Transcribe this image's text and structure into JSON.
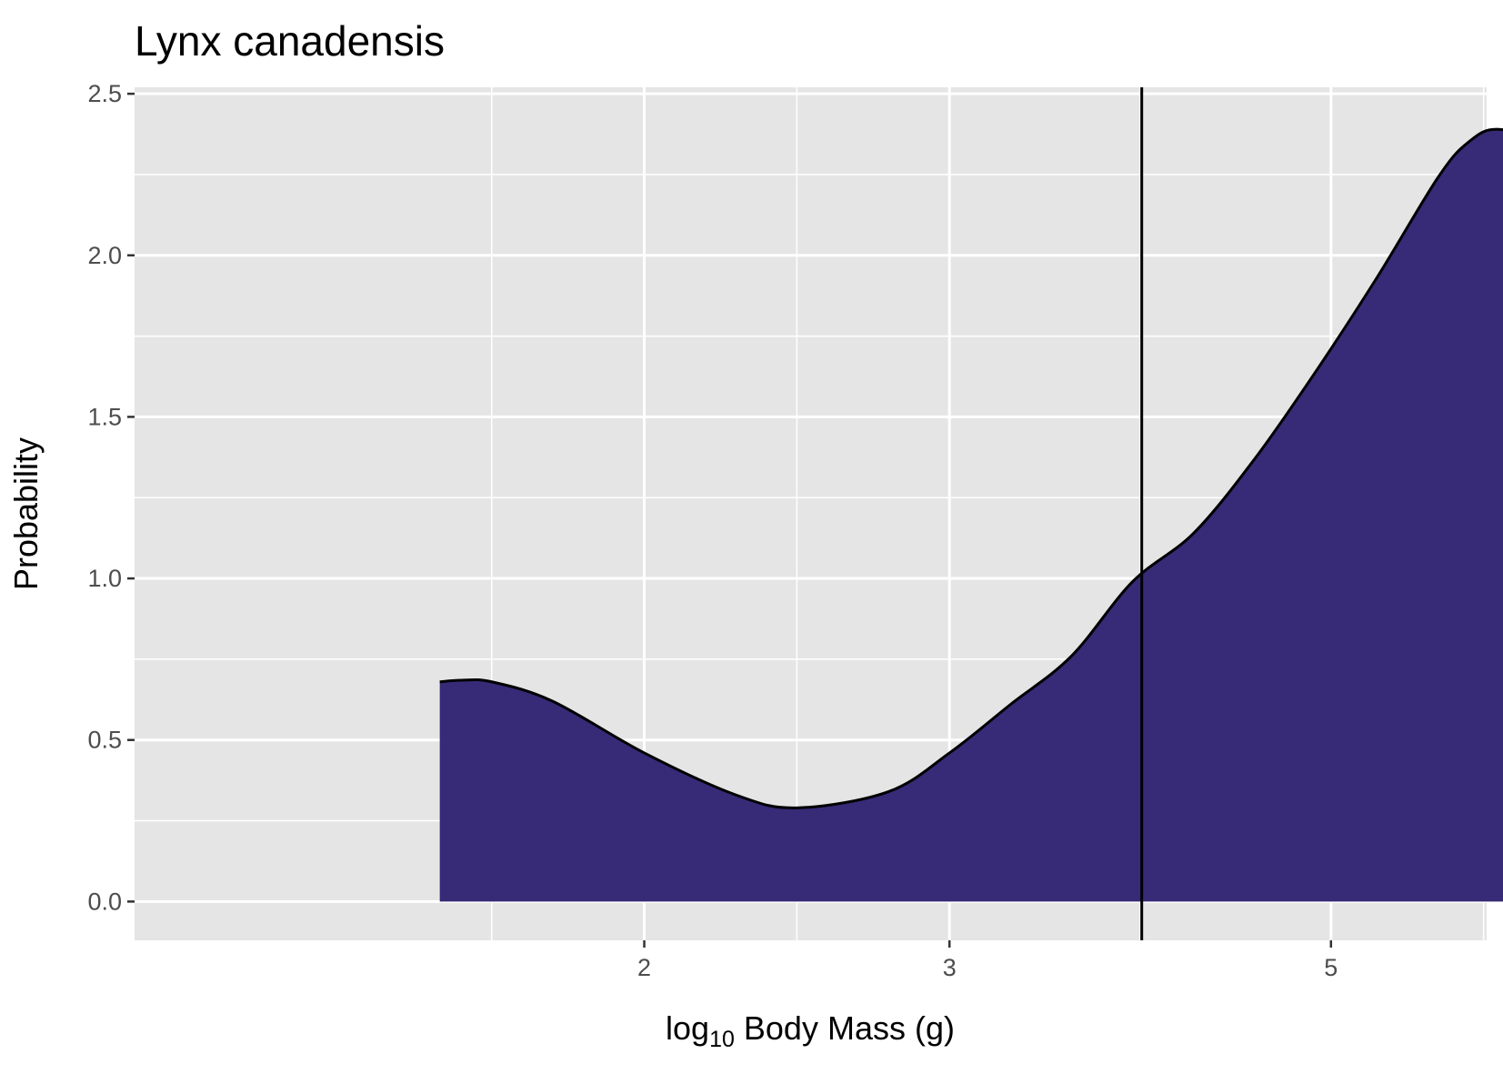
{
  "chart_data": {
    "type": "area",
    "title": "Lynx canadensis",
    "xlabel_main": "log",
    "xlabel_sub": "10",
    "xlabel_rest": " Body Mass (g)",
    "ylabel": "Probability",
    "x_ticks": [
      {
        "value": 1.0,
        "label": "2"
      },
      {
        "value": 2.0,
        "label": "3"
      },
      {
        "value": 3.25,
        "label": "5"
      }
    ],
    "x_minor": [
      0.5,
      1.5,
      2.625,
      3.75
    ],
    "xlim": [
      -0.67,
      3.76
    ],
    "y_ticks": [
      {
        "value": 0.0,
        "label": "0.0"
      },
      {
        "value": 0.5,
        "label": "0.5"
      },
      {
        "value": 1.0,
        "label": "1.0"
      },
      {
        "value": 1.5,
        "label": "1.5"
      },
      {
        "value": 2.0,
        "label": "2.0"
      },
      {
        "value": 2.5,
        "label": "2.5"
      }
    ],
    "ylim": [
      -0.12,
      2.52
    ],
    "vline_x": 2.63,
    "fill_color": "#372a77",
    "panel_color": "#e5e5e5",
    "grid": true,
    "legend": "none",
    "curve": {
      "x": [
        0.33,
        0.4,
        0.5,
        0.7,
        1.0,
        1.3,
        1.5,
        1.8,
        2.0,
        2.2,
        2.4,
        2.6,
        2.8,
        3.0,
        3.2,
        3.4,
        3.6,
        3.7,
        3.8,
        3.99
      ],
      "y": [
        0.68,
        0.685,
        0.68,
        0.62,
        0.46,
        0.33,
        0.29,
        0.34,
        0.46,
        0.61,
        0.76,
        0.99,
        1.14,
        1.37,
        1.64,
        1.93,
        2.24,
        2.35,
        2.39,
        2.34
      ]
    }
  }
}
